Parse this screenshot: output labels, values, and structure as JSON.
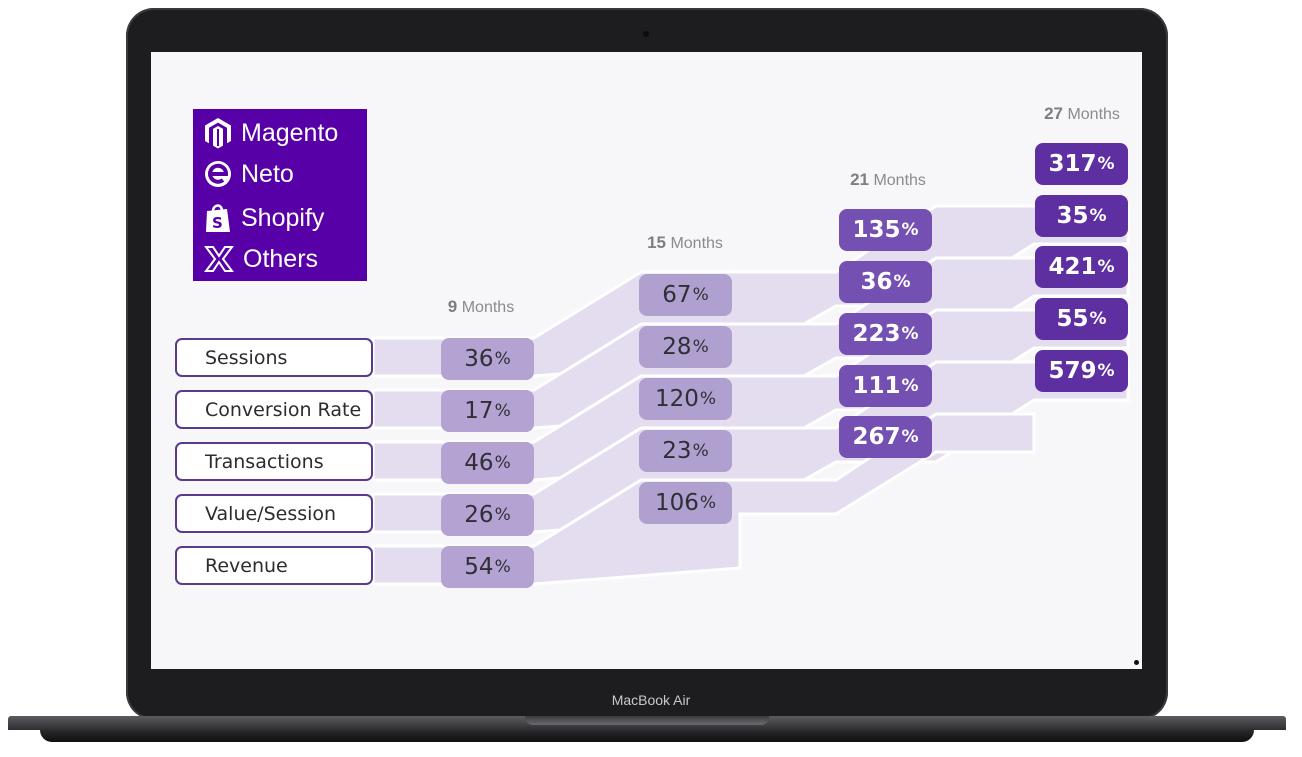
{
  "device": {
    "model": "MacBook Air"
  },
  "platforms": [
    {
      "icon": "magento-icon",
      "label": "Magento"
    },
    {
      "icon": "neto-icon",
      "label": "Neto"
    },
    {
      "icon": "shopify-icon",
      "label": "Shopify"
    },
    {
      "icon": "x-icon",
      "label": "Others"
    }
  ],
  "metrics": [
    "Sessions",
    "Conversion Rate",
    "Transactions",
    "Value/Session",
    "Revenue"
  ],
  "periods": [
    {
      "number": "9",
      "unit": "Months",
      "values": [
        "36",
        "17",
        "46",
        "26",
        "54"
      ]
    },
    {
      "number": "15",
      "unit": "Months",
      "values": [
        "67",
        "28",
        "120",
        "23",
        "106"
      ]
    },
    {
      "number": "21",
      "unit": "Months",
      "values": [
        "135",
        "36",
        "223",
        "111",
        "267"
      ]
    },
    {
      "number": "27",
      "unit": "Months",
      "values": [
        "317",
        "35",
        "421",
        "55",
        "579"
      ]
    }
  ],
  "percent_symbol": "%",
  "colors": {
    "logo_box": "#5800a7",
    "period_1": "#b4a2d3",
    "period_3": "#7550b3",
    "period_4": "#5d2fa0",
    "ribbon": "#e4ddf0"
  }
}
